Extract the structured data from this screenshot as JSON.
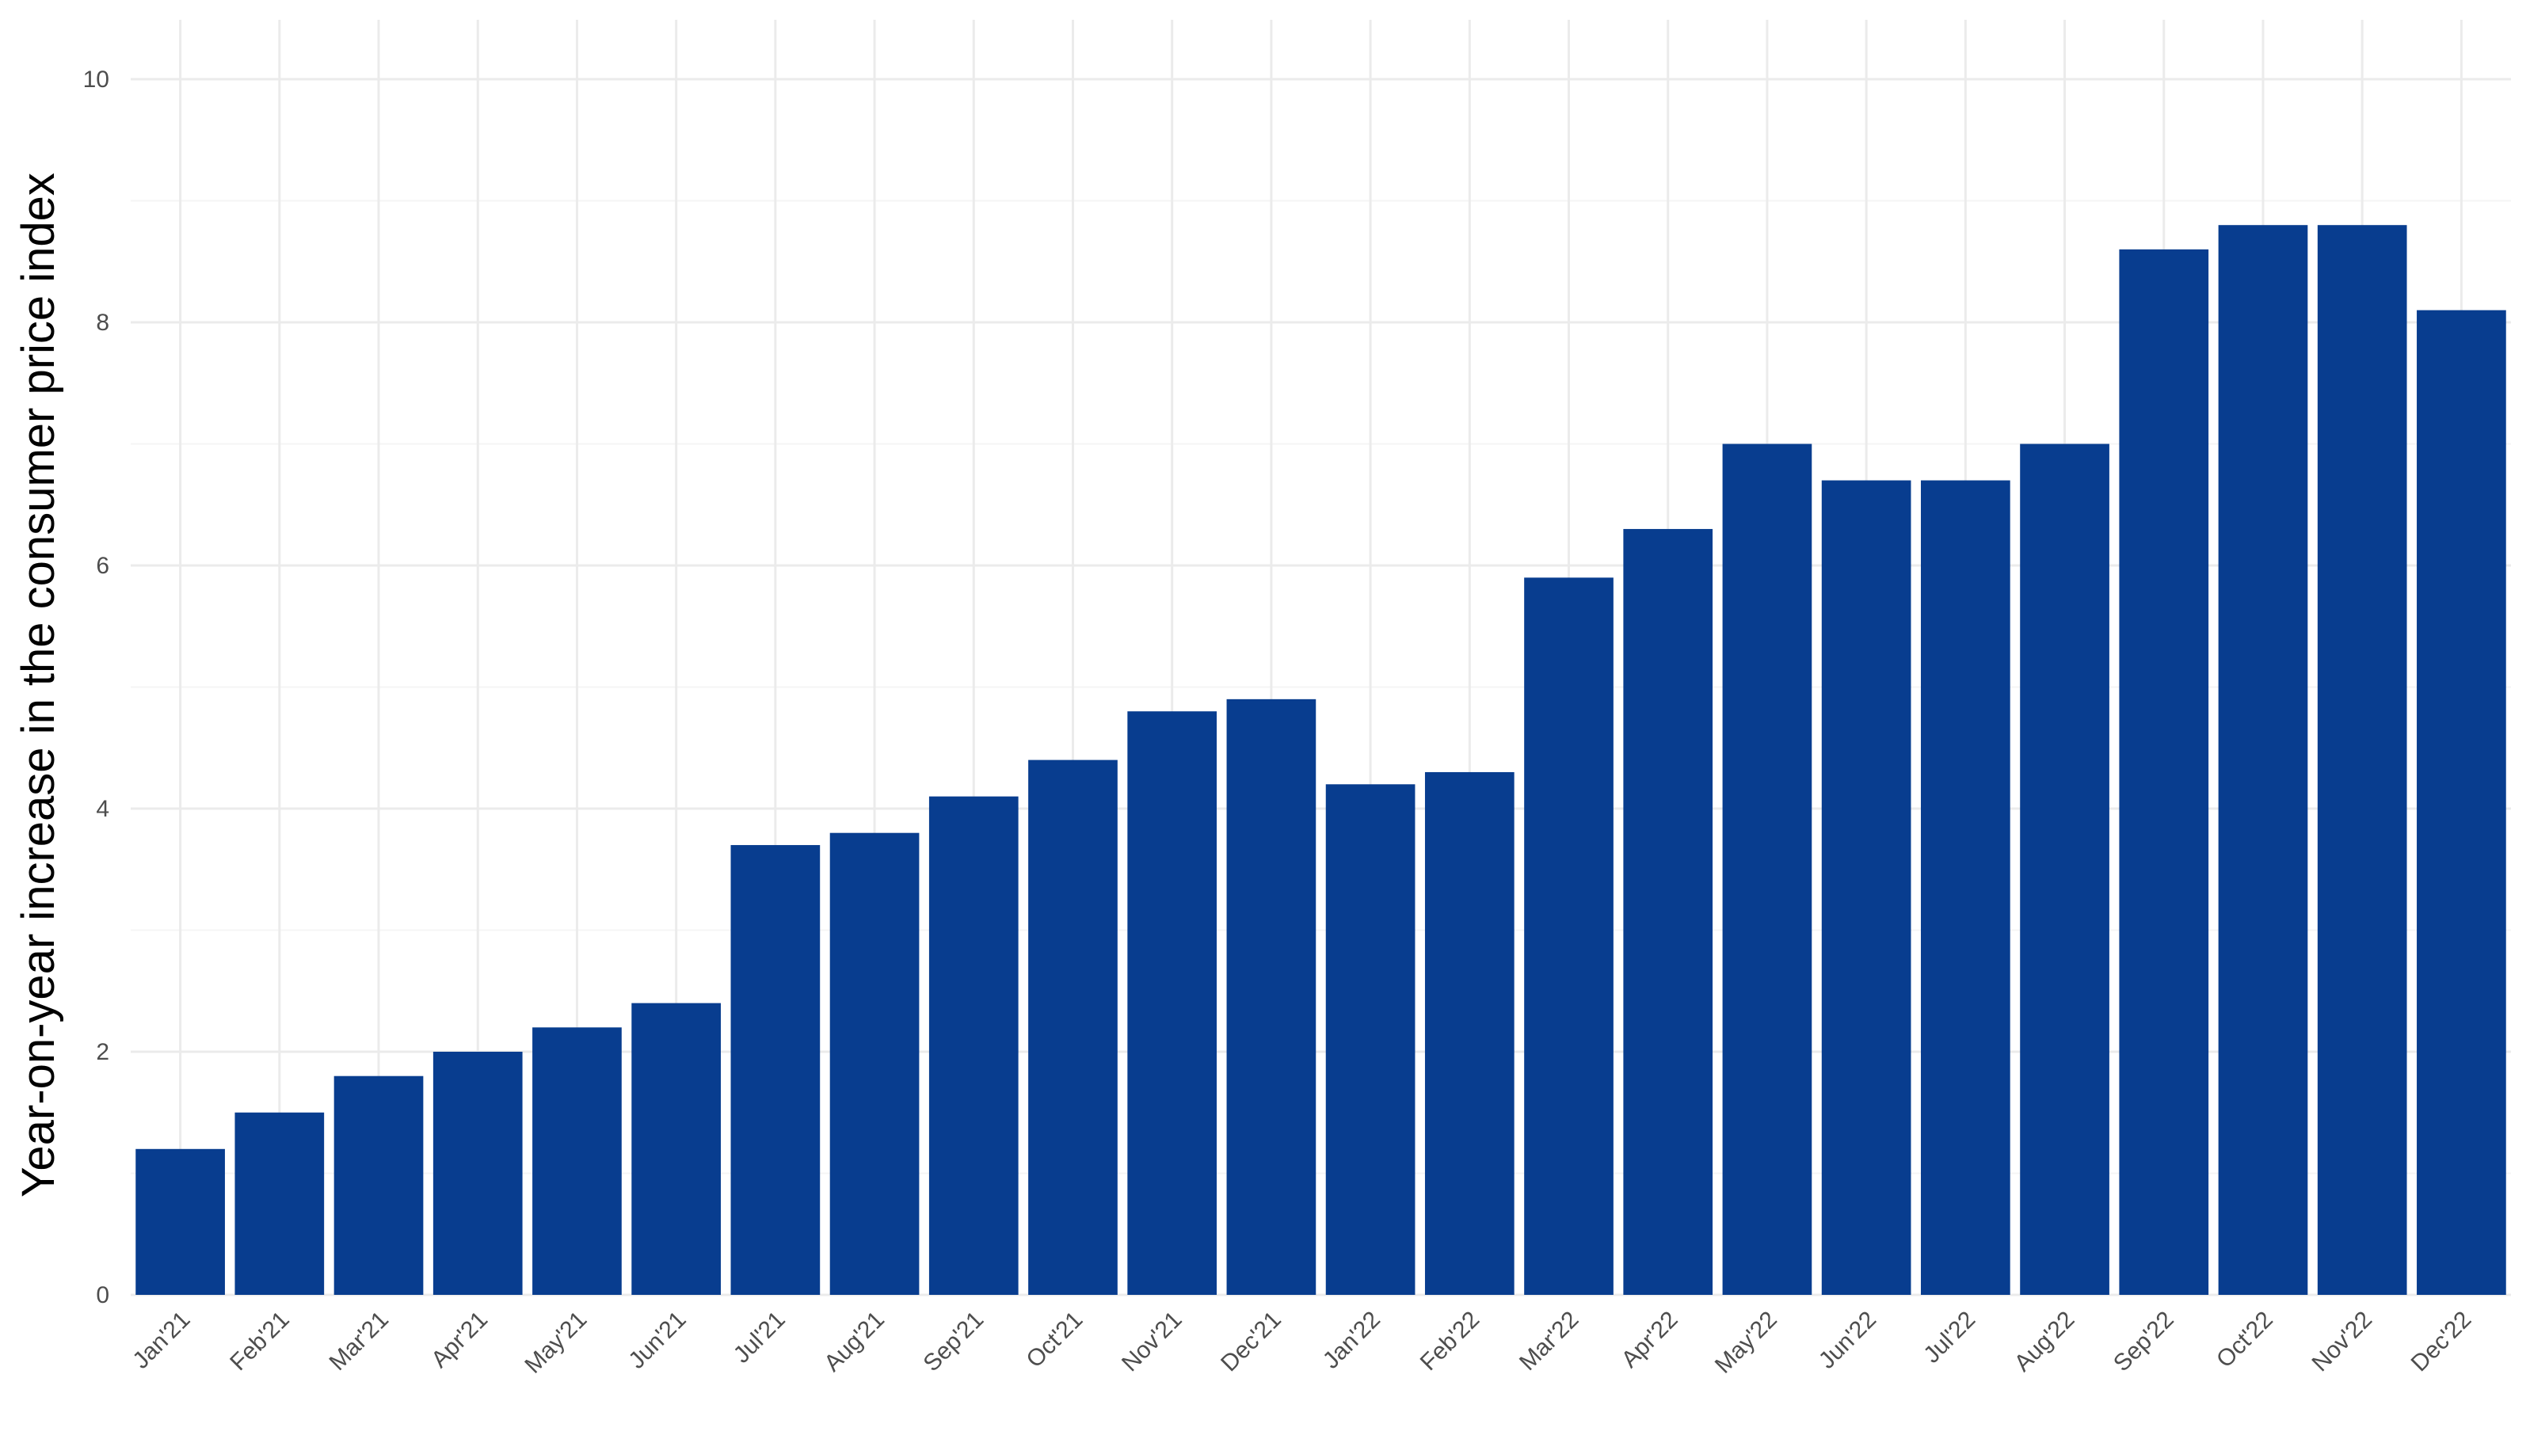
{
  "chart_data": {
    "type": "bar",
    "title": "",
    "xlabel": "",
    "ylabel": "Year-on-year increase in the consumer price index",
    "ylim": [
      0,
      10
    ],
    "yticks": [
      0,
      2,
      4,
      6,
      8,
      10
    ],
    "grid": true,
    "legend": "none",
    "bar_color": "#083D8F",
    "categories": [
      "Jan'21",
      "Feb'21",
      "Mar'21",
      "Apr'21",
      "May'21",
      "Jun'21",
      "Jul'21",
      "Aug'21",
      "Sep'21",
      "Oct'21",
      "Nov'21",
      "Dec'21",
      "Jan'22",
      "Feb'22",
      "Mar'22",
      "Apr'22",
      "May'22",
      "Jun'22",
      "Jul'22",
      "Aug'22",
      "Sep'22",
      "Oct'22",
      "Nov'22",
      "Dec'22"
    ],
    "values": [
      1.2,
      1.5,
      1.8,
      2.0,
      2.2,
      2.4,
      3.7,
      3.8,
      4.1,
      4.4,
      4.8,
      4.9,
      4.2,
      4.3,
      5.9,
      6.3,
      7.0,
      6.7,
      6.7,
      7.0,
      8.6,
      8.8,
      8.8,
      8.1
    ]
  }
}
